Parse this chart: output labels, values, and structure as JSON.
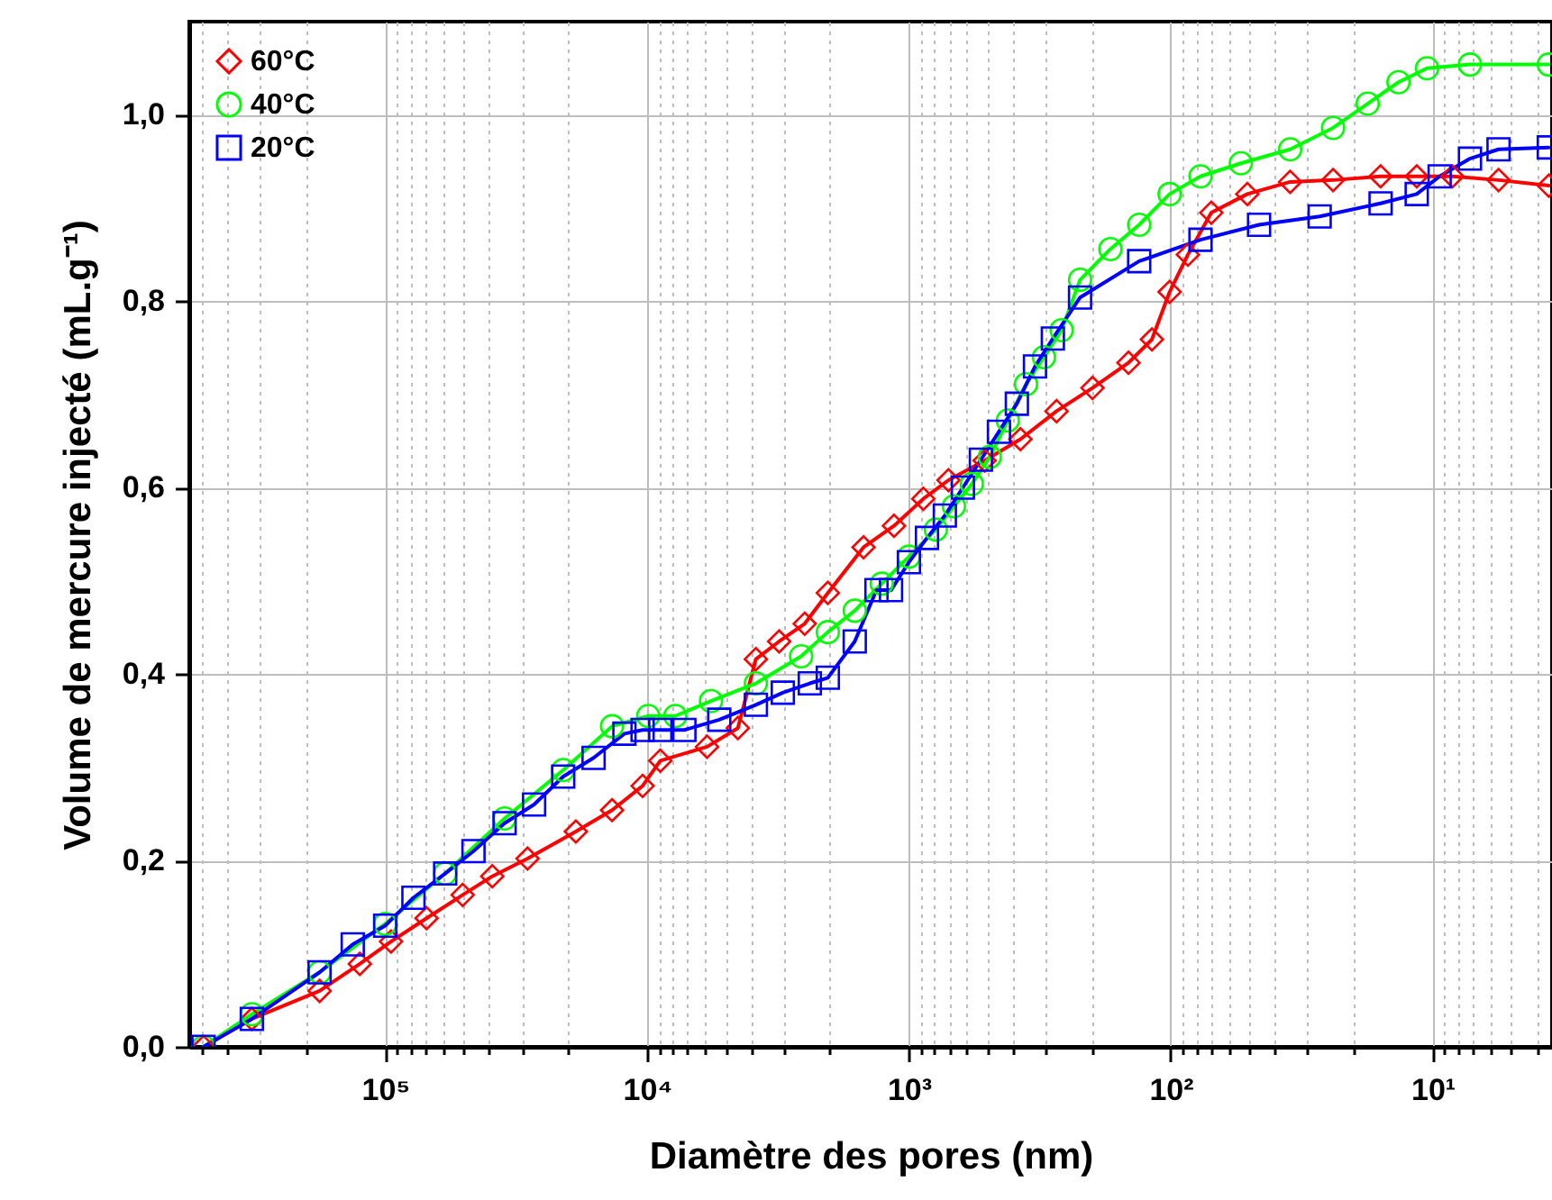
{
  "chart_data": {
    "type": "line",
    "xlabel": "Diamètre des pores (nm)",
    "ylabel": "Volume de mercure injecté (mL.g⁻¹)",
    "log": "x",
    "xlim": [
      560000,
      3.5
    ],
    "ylim": [
      0,
      1.1
    ],
    "xticks": [
      {
        "value": 500000,
        "label": null
      },
      {
        "value": 400000,
        "label": null
      },
      {
        "value": 300000,
        "label": null
      },
      {
        "value": 200000,
        "label": null
      },
      {
        "value": 100000,
        "label": "10⁵"
      },
      {
        "value": 90000,
        "label": null
      },
      {
        "value": 80000,
        "label": null
      },
      {
        "value": 70000,
        "label": null
      },
      {
        "value": 60000,
        "label": null
      },
      {
        "value": 50000,
        "label": null
      },
      {
        "value": 40000,
        "label": null
      },
      {
        "value": 30000,
        "label": null
      },
      {
        "value": 20000,
        "label": null
      },
      {
        "value": 10000,
        "label": "10⁴"
      },
      {
        "value": 9000,
        "label": null
      },
      {
        "value": 8000,
        "label": null
      },
      {
        "value": 7000,
        "label": null
      },
      {
        "value": 6000,
        "label": null
      },
      {
        "value": 5000,
        "label": null
      },
      {
        "value": 4000,
        "label": null
      },
      {
        "value": 3000,
        "label": null
      },
      {
        "value": 2000,
        "label": null
      },
      {
        "value": 1000,
        "label": "10³"
      },
      {
        "value": 900,
        "label": null
      },
      {
        "value": 800,
        "label": null
      },
      {
        "value": 700,
        "label": null
      },
      {
        "value": 600,
        "label": null
      },
      {
        "value": 500,
        "label": null
      },
      {
        "value": 400,
        "label": null
      },
      {
        "value": 300,
        "label": null
      },
      {
        "value": 200,
        "label": null
      },
      {
        "value": 100,
        "label": "10²"
      },
      {
        "value": 90,
        "label": null
      },
      {
        "value": 80,
        "label": null
      },
      {
        "value": 70,
        "label": null
      },
      {
        "value": 60,
        "label": null
      },
      {
        "value": 50,
        "label": null
      },
      {
        "value": 40,
        "label": null
      },
      {
        "value": 30,
        "label": null
      },
      {
        "value": 20,
        "label": null
      },
      {
        "value": 10,
        "label": "10¹"
      },
      {
        "value": 9,
        "label": null
      },
      {
        "value": 8,
        "label": null
      },
      {
        "value": 7,
        "label": null
      },
      {
        "value": 6,
        "label": null
      },
      {
        "value": 5,
        "label": null
      },
      {
        "value": 4,
        "label": null
      }
    ],
    "yticks": [
      {
        "value": 0,
        "label": "0,0"
      },
      {
        "value": 0.2,
        "label": "0,2"
      },
      {
        "value": 0.4,
        "label": "0,4"
      },
      {
        "value": 0.6,
        "label": "0,6"
      },
      {
        "value": 0.8,
        "label": "0,8"
      },
      {
        "value": 1.0,
        "label": "1,0"
      }
    ],
    "grid": true,
    "legend": "top left",
    "line_style": "solid",
    "series": [
      {
        "name": "60°C",
        "color": "#ff0000",
        "marker": "diamond",
        "x": [
          494000,
          323000,
          178000,
          125000,
          95000,
          69500,
          50600,
          39000,
          28600,
          18700,
          13600,
          10400,
          8900,
          5900,
          4500,
          3840,
          3130,
          2500,
          2040,
          1490,
          1140,
          881,
          706,
          514,
          375,
          273,
          199,
          145,
          118,
          101,
          86,
          70,
          51,
          35,
          24,
          15.8,
          11.5,
          8.4,
          5.6,
          3.6
        ],
        "values": [
          0,
          0.03,
          0.06,
          0.089,
          0.113,
          0.138,
          0.163,
          0.183,
          0.202,
          0.231,
          0.254,
          0.28,
          0.307,
          0.322,
          0.342,
          0.416,
          0.435,
          0.454,
          0.487,
          0.536,
          0.559,
          0.588,
          0.608,
          0.629,
          0.652,
          0.682,
          0.707,
          0.734,
          0.759,
          0.81,
          0.85,
          0.895,
          0.915,
          0.928,
          0.93,
          0.934,
          0.934,
          0.934,
          0.93,
          0.924
        ]
      },
      {
        "name": "40°C",
        "color": "#00ff00",
        "marker": "circle",
        "x": [
          494000,
          323000,
          178000,
          100000,
          59000,
          35000,
          20900,
          13600,
          9900,
          7800,
          5700,
          3840,
          2580,
          2040,
          1610,
          1270,
          1000,
          789,
          673,
          575,
          491,
          419,
          357,
          305,
          261,
          222,
          170,
          132,
          101,
          77,
          54,
          35,
          24,
          17.7,
          13.5,
          10.5,
          7.2,
          3.6
        ],
        "values": [
          0,
          0.035,
          0.08,
          0.132,
          0.186,
          0.245,
          0.297,
          0.344,
          0.355,
          0.355,
          0.371,
          0.39,
          0.419,
          0.445,
          0.468,
          0.497,
          0.526,
          0.555,
          0.58,
          0.604,
          0.633,
          0.672,
          0.711,
          0.74,
          0.769,
          0.823,
          0.856,
          0.882,
          0.915,
          0.934,
          0.948,
          0.963,
          0.986,
          1.012,
          1.035,
          1.05,
          1.054,
          1.054
        ]
      },
      {
        "name": "20°C",
        "color": "#0000ff",
        "marker": "square",
        "x": [
          494000,
          323000,
          178000,
          133000,
          100000,
          78000,
          59000,
          46000,
          35000,
          27000,
          20900,
          16000,
          12200,
          10400,
          8900,
          7200,
          5300,
          3840,
          3030,
          2390,
          2040,
          1610,
          1330,
          1170,
          1000,
          853,
          729,
          622,
          531,
          453,
          387,
          330,
          282,
          222,
          132,
          77,
          46,
          27,
          15.8,
          11.5,
          9.4,
          7.2,
          5.6,
          3.6
        ],
        "values": [
          0,
          0.03,
          0.08,
          0.11,
          0.13,
          0.16,
          0.186,
          0.21,
          0.24,
          0.26,
          0.29,
          0.31,
          0.336,
          0.34,
          0.34,
          0.34,
          0.351,
          0.367,
          0.38,
          0.39,
          0.396,
          0.435,
          0.49,
          0.49,
          0.52,
          0.546,
          0.57,
          0.6,
          0.63,
          0.66,
          0.69,
          0.73,
          0.76,
          0.804,
          0.843,
          0.866,
          0.882,
          0.891,
          0.905,
          0.915,
          0.934,
          0.953,
          0.963,
          0.965
        ]
      }
    ]
  }
}
